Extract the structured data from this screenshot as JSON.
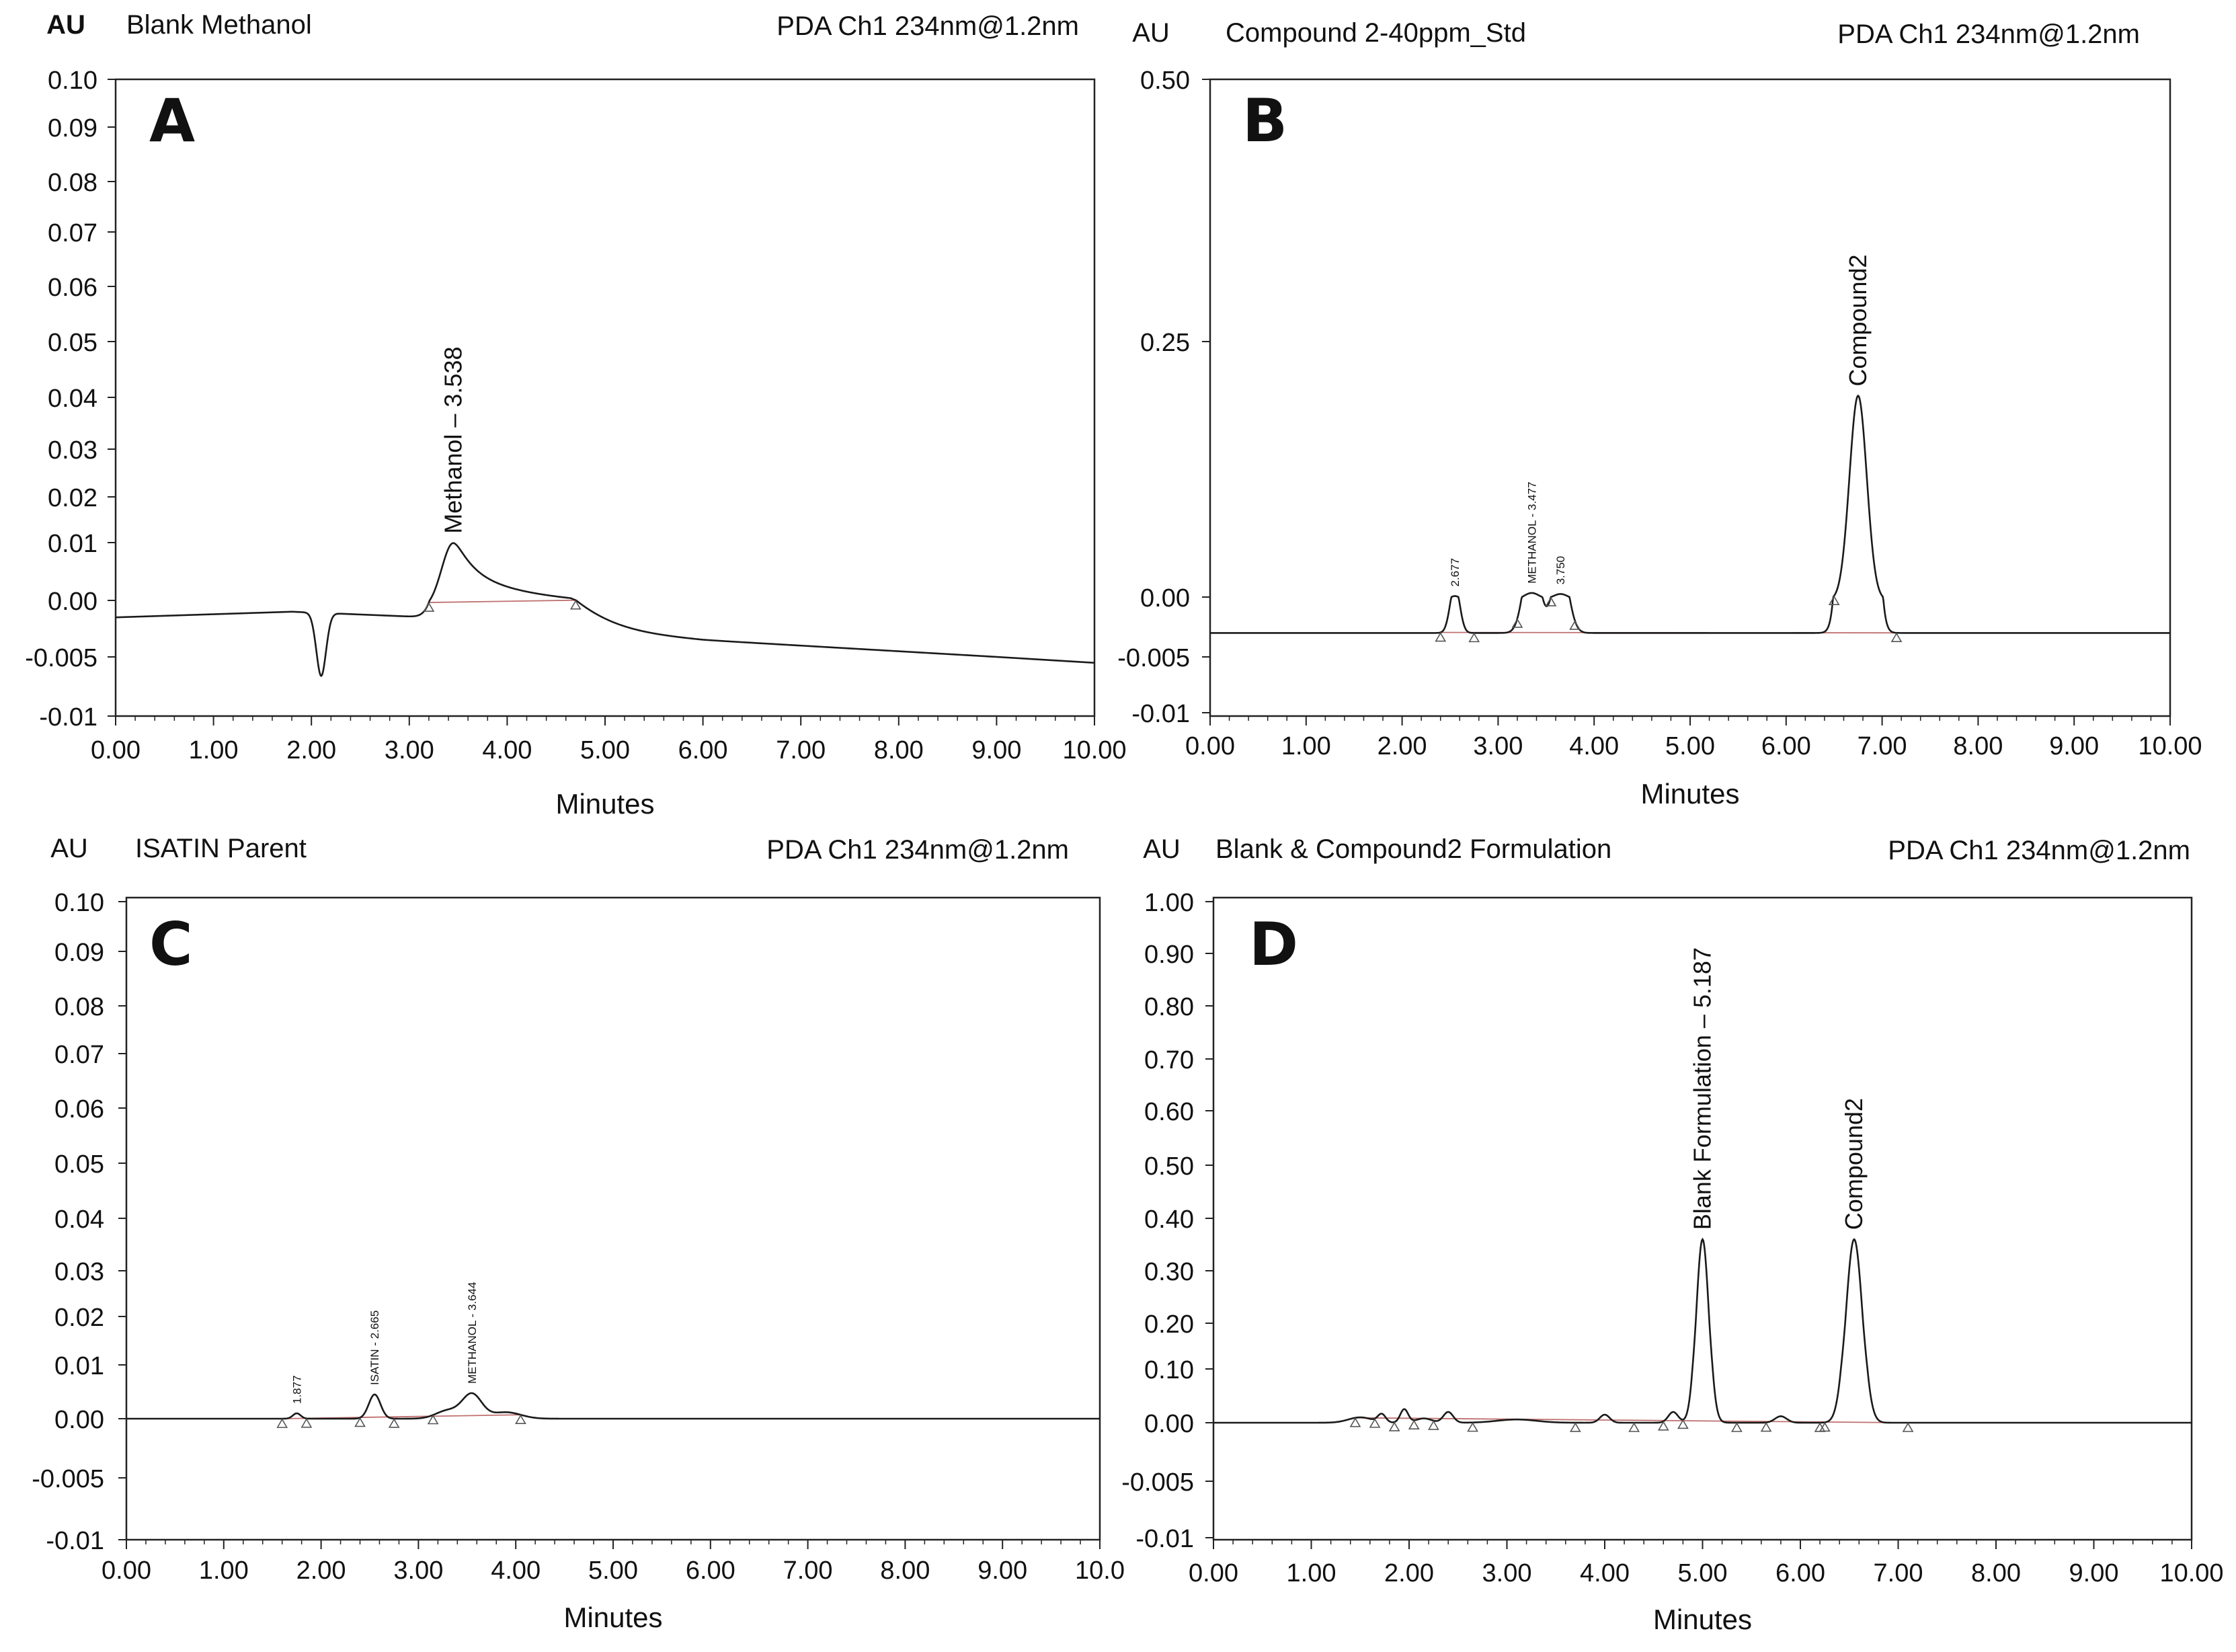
{
  "chart_data": [
    {
      "type": "line",
      "panel": "A",
      "title": "Blank Methanol",
      "detector": "PDA Ch1 234nm@1.2nm",
      "ylabel": "AU",
      "xlabel": "Minutes",
      "xlim": [
        0,
        10
      ],
      "ylim": [
        -0.01,
        0.1
      ],
      "y_tick_labels": [
        "0.10",
        "0.09",
        "0.08",
        "0.07",
        "0.06",
        "0.05",
        "0.04",
        "0.03",
        "0.02",
        "0.01",
        "0.00",
        "-0.005",
        "-0.01"
      ],
      "x_tick_labels": [
        "0.00",
        "1.00",
        "2.00",
        "3.00",
        "4.00",
        "5.00",
        "6.00",
        "7.00",
        "8.00",
        "9.00",
        "10.00"
      ],
      "baseline": -0.0015,
      "drift": [
        [
          0,
          -0.0015
        ],
        [
          1.8,
          -0.001
        ],
        [
          3.5,
          -0.0016
        ],
        [
          6,
          -0.0035
        ],
        [
          10,
          -0.0055
        ]
      ],
      "peaks": [
        {
          "rt": 2.1,
          "height": -0.0055,
          "width": 0.05
        },
        {
          "rt": 3.45,
          "height": 0.0115,
          "width": 0.12,
          "tail": 0.6
        }
      ],
      "labels": [
        {
          "text": "Methanol – 3.538",
          "rt": 3.45
        }
      ],
      "markers": [
        3.2,
        4.7
      ]
    },
    {
      "type": "line",
      "panel": "B",
      "title": "Compound 2-40ppm_Std",
      "detector": "PDA Ch1 234nm@1.2nm",
      "ylabel": "AU",
      "xlabel": "Minutes",
      "xlim": [
        0,
        10
      ],
      "ylim": [
        -0.01,
        0.5
      ],
      "y_tick_labels": [
        "0.50",
        "0.25",
        "0.00",
        "-0.005",
        "-0.01"
      ],
      "x_tick_labels": [
        "0.00",
        "1.00",
        "2.00",
        "3.00",
        "4.00",
        "5.00",
        "6.00",
        "7.00",
        "8.00",
        "9.00",
        "10.00"
      ],
      "baseline": -0.003,
      "drift": [
        [
          0,
          -0.003
        ],
        [
          10,
          -0.003
        ]
      ],
      "peaks": [
        {
          "rt": 2.55,
          "height": 0.004,
          "width": 0.05
        },
        {
          "rt": 3.35,
          "height": 0.007,
          "width": 0.08
        },
        {
          "rt": 3.65,
          "height": 0.006,
          "width": 0.08
        },
        {
          "rt": 6.75,
          "height": 0.2,
          "width": 0.09
        }
      ],
      "labels": [
        {
          "text": "2.677",
          "rt": 2.55,
          "small": true
        },
        {
          "text": "METHANOL - 3.477",
          "rt": 3.35,
          "small": true
        },
        {
          "text": "3.750",
          "rt": 3.65,
          "small": true
        },
        {
          "text": "Compound2",
          "rt": 6.75
        }
      ],
      "markers": [
        2.4,
        2.75,
        3.2,
        3.55,
        3.8,
        6.5,
        7.15
      ]
    },
    {
      "type": "line",
      "panel": "C",
      "title": "ISATIN Parent",
      "detector": "PDA Ch1 234nm@1.2nm",
      "ylabel": "AU",
      "xlabel": "Minutes",
      "xlim": [
        0,
        10
      ],
      "ylim": [
        -0.01,
        0.1
      ],
      "y_tick_labels": [
        "0.10",
        "0.09",
        "0.08",
        "0.07",
        "0.06",
        "0.05",
        "0.04",
        "0.03",
        "0.02",
        "0.01",
        "0.00",
        "-0.005",
        "-0.01"
      ],
      "x_tick_labels": [
        "0.00",
        "1.00",
        "2.00",
        "3.00",
        "4.00",
        "5.00",
        "6.00",
        "7.00",
        "8.00",
        "9.00",
        "10.0"
      ],
      "baseline": 0.0,
      "drift": [
        [
          0,
          0.0
        ],
        [
          10,
          0.0
        ]
      ],
      "peaks": [
        {
          "rt": 1.75,
          "height": 0.001,
          "width": 0.04
        },
        {
          "rt": 2.55,
          "height": 0.0045,
          "width": 0.06
        },
        {
          "rt": 3.3,
          "height": 0.0015,
          "width": 0.12
        },
        {
          "rt": 3.55,
          "height": 0.0045,
          "width": 0.1
        },
        {
          "rt": 3.9,
          "height": 0.0012,
          "width": 0.15
        }
      ],
      "labels": [
        {
          "text": "1.877",
          "rt": 1.75,
          "small": true
        },
        {
          "text": "ISATIN - 2.665",
          "rt": 2.55,
          "small": true
        },
        {
          "text": "METHANOL - 3.644",
          "rt": 3.55,
          "small": true
        }
      ],
      "markers": [
        1.6,
        1.85,
        2.4,
        2.75,
        3.15,
        4.05
      ]
    },
    {
      "type": "line",
      "panel": "D",
      "title": "Blank & Compound2 Formulation",
      "detector": "PDA Ch1 234nm@1.2nm",
      "ylabel": "AU",
      "xlabel": "Minutes",
      "xlim": [
        0,
        10
      ],
      "ylim": [
        -0.01,
        1.0
      ],
      "y_tick_labels": [
        "1.00",
        "0.90",
        "0.80",
        "0.70",
        "0.60",
        "0.50",
        "0.40",
        "0.30",
        "0.20",
        "0.10",
        "0.00",
        "-0.005",
        "-0.01"
      ],
      "x_tick_labels": [
        "0.00",
        "1.00",
        "2.00",
        "3.00",
        "4.00",
        "5.00",
        "6.00",
        "7.00",
        "8.00",
        "9.00",
        "10.00"
      ],
      "baseline": 0.0,
      "drift": [
        [
          0,
          0.0
        ],
        [
          10,
          0.0
        ]
      ],
      "peaks": [
        {
          "rt": 1.5,
          "height": 0.01,
          "width": 0.12
        },
        {
          "rt": 1.72,
          "height": 0.015,
          "width": 0.04
        },
        {
          "rt": 1.95,
          "height": 0.025,
          "width": 0.04
        },
        {
          "rt": 2.15,
          "height": 0.008,
          "width": 0.08
        },
        {
          "rt": 2.4,
          "height": 0.02,
          "width": 0.05
        },
        {
          "rt": 3.1,
          "height": 0.006,
          "width": 0.2
        },
        {
          "rt": 4.0,
          "height": 0.015,
          "width": 0.05
        },
        {
          "rt": 4.7,
          "height": 0.02,
          "width": 0.05
        },
        {
          "rt": 5.0,
          "height": 0.36,
          "width": 0.065
        },
        {
          "rt": 5.8,
          "height": 0.012,
          "width": 0.06
        },
        {
          "rt": 6.55,
          "height": 0.36,
          "width": 0.085
        }
      ],
      "labels": [
        {
          "text": "Blank Formulation – 5.187",
          "rt": 5.0
        },
        {
          "text": "Compound2",
          "rt": 6.55
        }
      ],
      "markers": [
        1.45,
        1.65,
        1.85,
        2.05,
        2.25,
        2.65,
        3.7,
        4.3,
        4.6,
        4.8,
        5.35,
        5.65,
        6.2,
        6.25,
        7.1
      ]
    }
  ]
}
